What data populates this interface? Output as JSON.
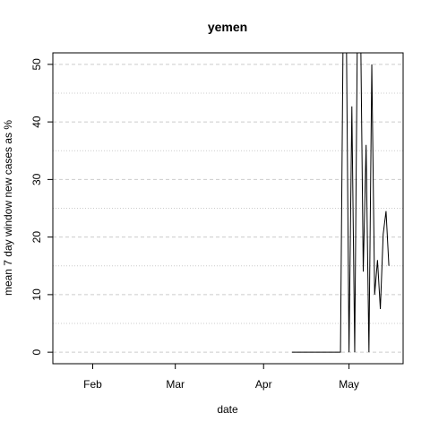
{
  "chart_data": {
    "type": "line",
    "title": "yemen",
    "xlabel": "date",
    "ylabel": "mean  7  day window new cases as %",
    "ylim": [
      -2,
      52
    ],
    "xlim": [
      "2020-01-18",
      "2020-05-20"
    ],
    "x_ticks": [
      {
        "date": "2020-02-01",
        "label": "Feb"
      },
      {
        "date": "2020-03-01",
        "label": "Mar"
      },
      {
        "date": "2020-04-01",
        "label": "Apr"
      },
      {
        "date": "2020-05-01",
        "label": "May"
      }
    ],
    "y_ticks": [
      0,
      10,
      20,
      30,
      40,
      50
    ],
    "grid": {
      "major": [
        0,
        10,
        20,
        30,
        40,
        50
      ],
      "minor": [
        5,
        15,
        25,
        35,
        45
      ],
      "horizontal_only": true
    },
    "series": [
      {
        "color": "#000000",
        "points": [
          [
            "2020-04-11",
            0
          ],
          [
            "2020-04-12",
            0
          ],
          [
            "2020-04-13",
            0
          ],
          [
            "2020-04-14",
            0
          ],
          [
            "2020-04-15",
            0
          ],
          [
            "2020-04-16",
            0
          ],
          [
            "2020-04-17",
            0
          ],
          [
            "2020-04-18",
            0
          ],
          [
            "2020-04-19",
            0
          ],
          [
            "2020-04-20",
            0
          ],
          [
            "2020-04-21",
            0
          ],
          [
            "2020-04-22",
            0
          ],
          [
            "2020-04-23",
            0
          ],
          [
            "2020-04-24",
            0
          ],
          [
            "2020-04-25",
            0
          ],
          [
            "2020-04-26",
            0
          ],
          [
            "2020-04-27",
            0
          ],
          [
            "2020-04-28",
            0
          ],
          [
            "2020-04-29",
            60
          ],
          [
            "2020-04-30",
            60
          ],
          [
            "2020-05-01",
            0
          ],
          [
            "2020-05-02",
            42.7
          ],
          [
            "2020-05-03",
            0
          ],
          [
            "2020-05-04",
            60
          ],
          [
            "2020-05-05",
            60
          ],
          [
            "2020-05-06",
            14
          ],
          [
            "2020-05-07",
            36
          ],
          [
            "2020-05-08",
            0
          ],
          [
            "2020-05-09",
            50
          ],
          [
            "2020-05-10",
            10
          ],
          [
            "2020-05-11",
            16
          ],
          [
            "2020-05-12",
            7.5
          ],
          [
            "2020-05-13",
            20.5
          ],
          [
            "2020-05-14",
            24.5
          ],
          [
            "2020-05-15",
            15
          ]
        ]
      }
    ]
  }
}
